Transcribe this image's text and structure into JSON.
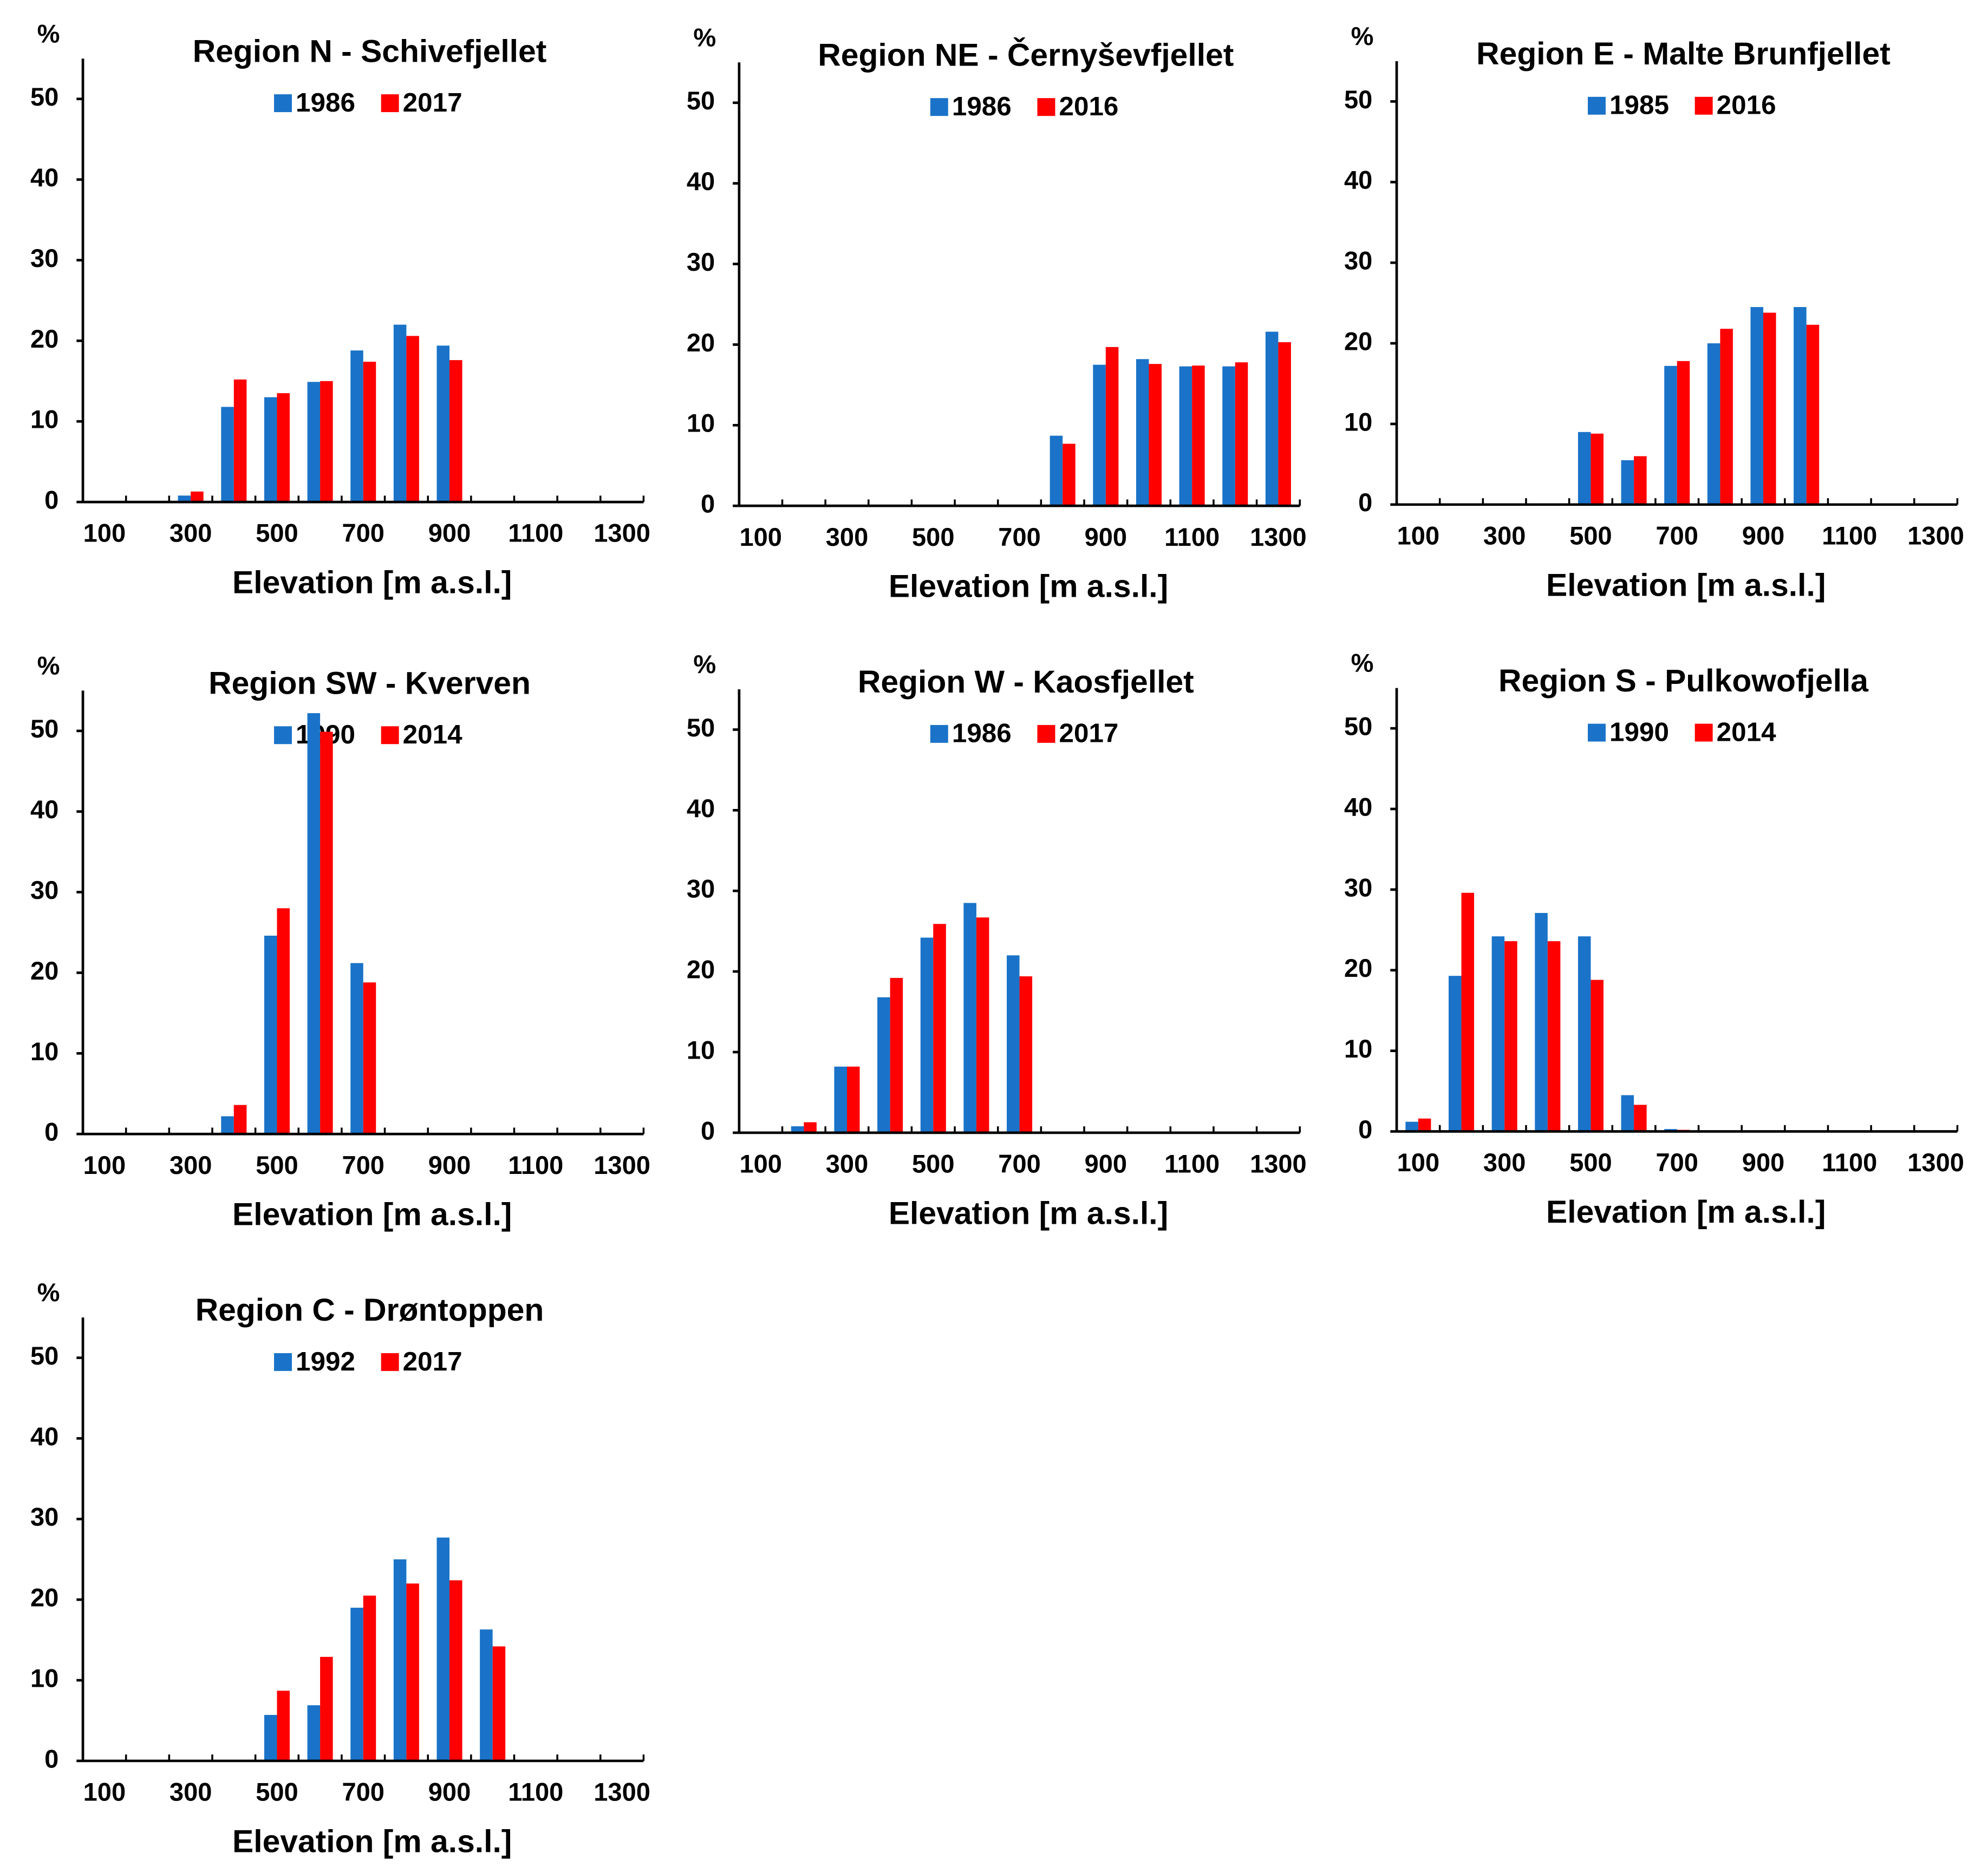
{
  "chart_data": [
    {
      "type": "bar",
      "title": "Region N - Schivefjellet",
      "xlabel": "Elevation [m a.s.l.]",
      "ylabel": "%",
      "categories": [
        100,
        null,
        300,
        null,
        500,
        null,
        700,
        null,
        900,
        null,
        1100,
        null,
        1300
      ],
      "series": [
        {
          "name": "1986",
          "color": "#1a73c8",
          "values": [
            null,
            null,
            0.8,
            11.8,
            13,
            14.9,
            18.8,
            22,
            19.4,
            null,
            null,
            null,
            null
          ]
        },
        {
          "name": "2017",
          "color": "#ff0000",
          "values": [
            null,
            null,
            1.3,
            15.2,
            13.5,
            15,
            17.4,
            20.6,
            17.6,
            null,
            null,
            null,
            null
          ]
        }
      ],
      "ylim": [
        0,
        55
      ],
      "yticks": [
        0,
        10,
        20,
        30,
        40,
        50
      ]
    },
    {
      "type": "bar",
      "title": "Region NE - Černyševfjellet",
      "xlabel": "Elevation [m a.s.l.]",
      "ylabel": "%",
      "categories": [
        100,
        null,
        300,
        null,
        500,
        null,
        700,
        null,
        900,
        null,
        1100,
        null,
        1300
      ],
      "series": [
        {
          "name": "1986",
          "color": "#1a73c8",
          "values": [
            null,
            null,
            null,
            null,
            null,
            null,
            null,
            8.7,
            17.5,
            18.2,
            17.3,
            17.3,
            21.6
          ]
        },
        {
          "name": "2016",
          "color": "#ff0000",
          "values": [
            null,
            null,
            null,
            null,
            null,
            null,
            null,
            7.7,
            19.7,
            17.6,
            17.4,
            17.8,
            20.3
          ]
        }
      ],
      "ylim": [
        0,
        55
      ],
      "yticks": [
        0,
        10,
        20,
        30,
        40,
        50
      ]
    },
    {
      "type": "bar",
      "title": "Region E - Malte Brunfjellet",
      "xlabel": "Elevation [m a.s.l.]",
      "ylabel": "%",
      "categories": [
        100,
        null,
        300,
        null,
        500,
        null,
        700,
        null,
        900,
        null,
        1100,
        null,
        1300
      ],
      "series": [
        {
          "name": "1985",
          "color": "#1a73c8",
          "values": [
            null,
            null,
            null,
            null,
            9,
            5.5,
            17.2,
            20,
            24.5,
            24.5,
            null,
            null,
            null
          ]
        },
        {
          "name": "2016",
          "color": "#ff0000",
          "values": [
            null,
            null,
            null,
            null,
            8.8,
            6,
            17.8,
            21.8,
            23.8,
            22.3,
            null,
            null,
            null
          ]
        }
      ],
      "ylim": [
        0,
        55
      ],
      "yticks": [
        0,
        10,
        20,
        30,
        40,
        50
      ]
    },
    {
      "type": "bar",
      "title": "Region SW - Kverven",
      "xlabel": "Elevation [m a.s.l.]",
      "ylabel": "%",
      "categories": [
        100,
        null,
        300,
        null,
        500,
        null,
        700,
        null,
        900,
        null,
        1100,
        null,
        1300
      ],
      "series": [
        {
          "name": "1990",
          "color": "#1a73c8",
          "values": [
            null,
            null,
            null,
            2.2,
            24.6,
            52.2,
            21.2,
            null,
            null,
            null,
            null,
            null,
            null
          ]
        },
        {
          "name": "2014",
          "color": "#ff0000",
          "values": [
            null,
            null,
            null,
            3.6,
            28,
            49.9,
            18.8,
            null,
            null,
            null,
            null,
            null,
            null
          ]
        }
      ],
      "ylim": [
        0,
        55
      ],
      "yticks": [
        0,
        10,
        20,
        30,
        40,
        50
      ]
    },
    {
      "type": "bar",
      "title": "Region W - Kaosfjellet",
      "xlabel": "Elevation [m a.s.l.]",
      "ylabel": "%",
      "categories": [
        100,
        null,
        300,
        null,
        500,
        null,
        700,
        null,
        900,
        null,
        1100,
        null,
        1300
      ],
      "series": [
        {
          "name": "1986",
          "color": "#1a73c8",
          "values": [
            null,
            0.8,
            8.2,
            16.8,
            24.2,
            28.5,
            22,
            null,
            null,
            null,
            null,
            null,
            null
          ]
        },
        {
          "name": "2017",
          "color": "#ff0000",
          "values": [
            null,
            1.3,
            8.2,
            19.2,
            25.9,
            26.7,
            19.4,
            null,
            null,
            null,
            null,
            null,
            null
          ]
        }
      ],
      "ylim": [
        0,
        55
      ],
      "yticks": [
        0,
        10,
        20,
        30,
        40,
        50
      ]
    },
    {
      "type": "bar",
      "title": "Region S - Pulkowofjella",
      "xlabel": "Elevation [m a.s.l.]",
      "ylabel": "%",
      "categories": [
        100,
        null,
        300,
        null,
        500,
        null,
        700,
        null,
        900,
        null,
        1100,
        null,
        1300
      ],
      "series": [
        {
          "name": "1990",
          "color": "#1a73c8",
          "values": [
            1.2,
            19.3,
            24.2,
            27.1,
            24.2,
            4.5,
            0.3,
            null,
            null,
            null,
            null,
            null,
            null
          ]
        },
        {
          "name": "2014",
          "color": "#ff0000",
          "values": [
            1.6,
            29.6,
            23.6,
            23.6,
            18.8,
            3.3,
            0.2,
            null,
            null,
            null,
            null,
            null,
            null
          ]
        }
      ],
      "ylim": [
        0,
        55
      ],
      "yticks": [
        0,
        10,
        20,
        30,
        40,
        50
      ]
    },
    {
      "type": "bar",
      "title": "Region C - Drøntoppen",
      "xlabel": "Elevation [m a.s.l.]",
      "ylabel": "%",
      "categories": [
        100,
        null,
        300,
        null,
        500,
        null,
        700,
        null,
        900,
        null,
        1100,
        null,
        1300
      ],
      "series": [
        {
          "name": "1992",
          "color": "#1a73c8",
          "values": [
            null,
            null,
            null,
            null,
            5.7,
            6.9,
            19,
            25,
            27.7,
            16.3,
            null,
            null,
            null
          ]
        },
        {
          "name": "2017",
          "color": "#ff0000",
          "values": [
            null,
            null,
            null,
            null,
            8.7,
            12.9,
            20.5,
            22,
            22.4,
            14.2,
            null,
            null,
            null
          ]
        }
      ],
      "ylim": [
        0,
        55
      ],
      "yticks": [
        0,
        10,
        20,
        30,
        40,
        50
      ]
    }
  ]
}
